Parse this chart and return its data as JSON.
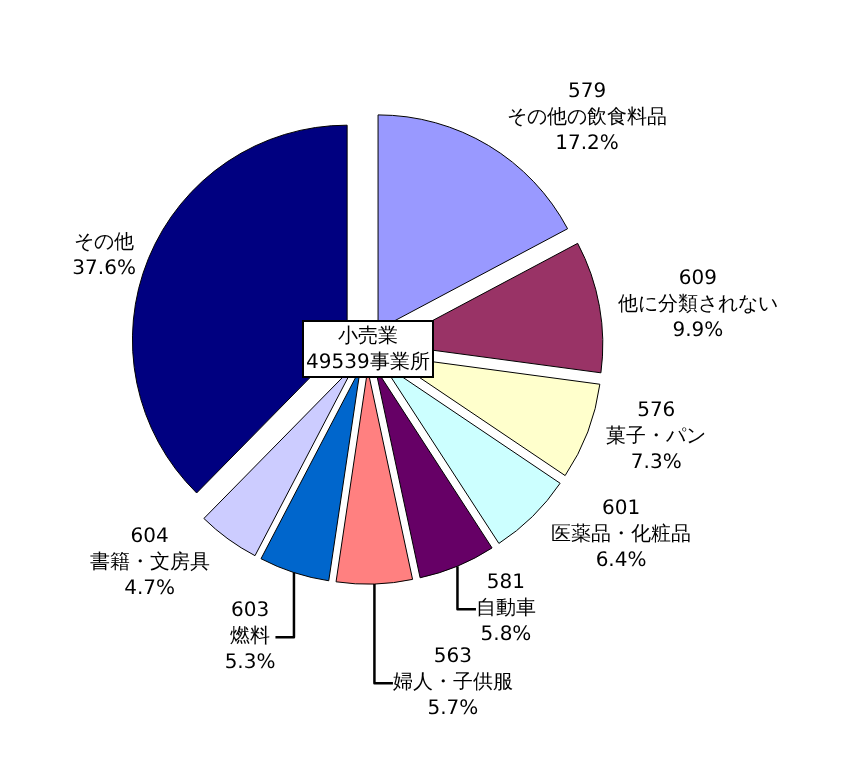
{
  "chart_data": {
    "type": "pie",
    "categories": [
      "579 その他の飲食料品",
      "609 他に分類されない",
      "576 菓子・パン",
      "601 医薬品・化粧品",
      "581 自動車",
      "563 婦人・子供服",
      "603 燃料",
      "604 書籍・文房具",
      "その他"
    ],
    "values": [
      17.2,
      9.9,
      7.3,
      6.4,
      5.8,
      5.7,
      5.3,
      4.7,
      37.6
    ],
    "value_labels": [
      "17.2%",
      "9.9%",
      "7.3%",
      "6.4%",
      "5.8%",
      "5.7%",
      "5.3%",
      "4.7%",
      "37.6%"
    ],
    "colors": [
      "#9999ff",
      "#993366",
      "#ffffcc",
      "#ccffff",
      "#660066",
      "#ff8080",
      "#0066cc",
      "#ccccff",
      "#000080"
    ],
    "annotations": [
      "小売業\n49539事業所"
    ]
  }
}
